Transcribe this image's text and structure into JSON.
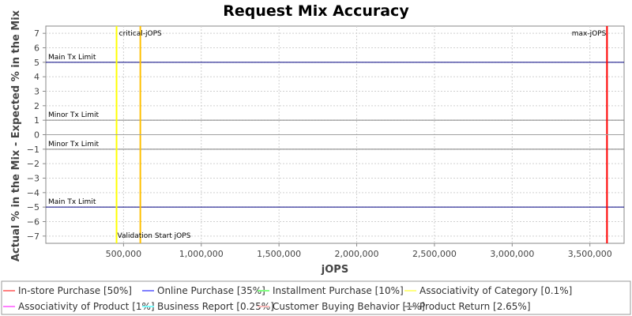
{
  "chart_data": {
    "type": "line",
    "title": "Request Mix Accuracy",
    "xlabel": "jOPS",
    "ylabel": "Actual % in the Mix - Expected % in the Mix",
    "xlim": [
      0,
      3720000
    ],
    "ylim": [
      -7.5,
      7.5
    ],
    "x_ticks": [
      500000,
      1000000,
      1500000,
      2000000,
      2500000,
      3000000,
      3500000
    ],
    "x_tick_labels": [
      "500,000",
      "1,000,000",
      "1,500,000",
      "2,000,000",
      "2,500,000",
      "3,000,000",
      "3,500,000"
    ],
    "y_ticks": [
      7,
      6,
      5,
      4,
      3,
      2,
      1,
      0,
      -1,
      -2,
      -3,
      -4,
      -5,
      -6,
      -7
    ],
    "y_tick_labels": [
      "7",
      "6",
      "5",
      "4",
      "3",
      "2",
      "1",
      "0",
      "−1",
      "−2",
      "−3",
      "−4",
      "−5",
      "−6",
      "−7"
    ],
    "grid": true,
    "legend_position": "bottom",
    "horizontal_lines": [
      {
        "label": "Main Tx Limit",
        "y": 5,
        "color": "#000080"
      },
      {
        "label": "Minor Tx Limit",
        "y": 1,
        "color": "#808080"
      },
      {
        "label": "Minor Tx Limit",
        "y": -1,
        "color": "#808080"
      },
      {
        "label": "Main Tx Limit",
        "y": -5,
        "color": "#000080"
      }
    ],
    "vertical_lines": [
      {
        "label": "critical-jOPS",
        "x": 608000,
        "color": "#FFC000"
      },
      {
        "label": "Validation Start jOPS",
        "x": 455000,
        "color": "#FFFF00"
      },
      {
        "label": "max-jOPS",
        "x": 3610000,
        "color": "#FF0000"
      }
    ],
    "series": [
      {
        "name": "In-store Purchase [50%]",
        "color": "#FF8080",
        "x": [
          0,
          3720000
        ],
        "y": [
          0,
          0
        ]
      },
      {
        "name": "Online Purchase [35%]",
        "color": "#8080FF",
        "x": [
          0,
          3720000
        ],
        "y": [
          0,
          0
        ]
      },
      {
        "name": "Installment Purchase [10%]",
        "color": "#80FF80",
        "x": [
          0,
          3720000
        ],
        "y": [
          0,
          0
        ]
      },
      {
        "name": "Associativity of Category [0.1%]",
        "color": "#FFFF80",
        "x": [
          0,
          3720000
        ],
        "y": [
          0,
          0
        ]
      },
      {
        "name": "Associativity of Product [1%]",
        "color": "#FF80FF",
        "x": [
          0,
          3720000
        ],
        "y": [
          0,
          0
        ]
      },
      {
        "name": "Business Report [0.25%]",
        "color": "#80FFFF",
        "x": [
          0,
          3720000
        ],
        "y": [
          0,
          0
        ]
      },
      {
        "name": "Customer Buying Behavior [1%]",
        "color": "#FFC0C0",
        "x": [
          0,
          3720000
        ],
        "y": [
          0,
          0
        ]
      },
      {
        "name": "Product Return [2.65%]",
        "color": "#A0A0A0",
        "x": [
          0,
          3720000
        ],
        "y": [
          0,
          0
        ]
      }
    ]
  }
}
